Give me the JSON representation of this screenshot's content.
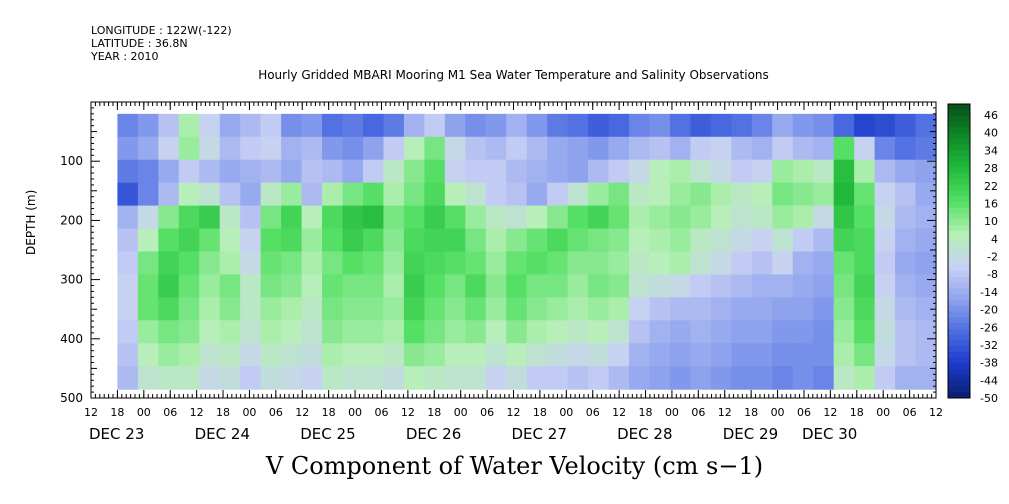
{
  "header": {
    "longitude": "LONGITUDE : 122W(-122)",
    "latitude": "LATITUDE : 36.8N",
    "year": "YEAR : 2010"
  },
  "chart_data": {
    "type": "heatmap",
    "title": "Hourly Gridded MBARI Mooring M1 Sea Water Temperature and Salinity Observations",
    "xlabel": "",
    "ylabel": "DEPTH (m)",
    "caption": "V Component of Water Velocity (cm s−1)",
    "ylim": [
      500,
      0
    ],
    "y_ticks": [
      100,
      200,
      300,
      400,
      500
    ],
    "x_hour_ticks": [
      "12",
      "18",
      "00",
      "06",
      "12",
      "18",
      "00",
      "06",
      "12",
      "18",
      "00",
      "06",
      "12",
      "18",
      "00",
      "06",
      "12",
      "18",
      "00",
      "06",
      "12",
      "18",
      "00",
      "06",
      "12",
      "18",
      "00",
      "06",
      "12",
      "18",
      "00",
      "06",
      "12"
    ],
    "x_day_labels": [
      "DEC 23",
      "DEC 24",
      "DEC 25",
      "DEC 26",
      "DEC 27",
      "DEC 28",
      "DEC 29",
      "DEC 30"
    ],
    "colorbar": {
      "labels": [
        "46",
        "40",
        "34",
        "28",
        "22",
        "16",
        "10",
        "4",
        "-2",
        "-8",
        "-14",
        "-20",
        "-26",
        "-32",
        "-38",
        "-44",
        "-50"
      ],
      "min": -50,
      "max": 52,
      "palette": [
        "#0a1f6e",
        "#1a39c8",
        "#4a6be0",
        "#8ea2ee",
        "#c8d0f5",
        "#b6f0b6",
        "#55e065",
        "#22bb3c",
        "#0f8a28",
        "#0a4f1a"
      ]
    },
    "data_extent": {
      "depth_top": 20,
      "depth_bottom": 485,
      "time_start": "DEC 23 18",
      "time_end": "DEC 30 12"
    },
    "values": [
      [
        -22,
        -18,
        -8,
        8,
        -4,
        -14,
        -10,
        -6,
        -20,
        -18,
        -26,
        -24,
        -28,
        -24,
        -12,
        -6,
        -16,
        -20,
        -18,
        -12,
        -18,
        -24,
        -26,
        -30,
        -28,
        -22,
        -20,
        -26,
        -30,
        -28,
        -26,
        -22,
        -14,
        -18,
        -20,
        -28,
        -36,
        -34,
        -30,
        -26
      ],
      [
        -18,
        -14,
        -4,
        10,
        -2,
        -10,
        -6,
        -4,
        -12,
        -10,
        -18,
        -20,
        -16,
        -6,
        6,
        14,
        -2,
        -8,
        -10,
        -6,
        -10,
        -14,
        -16,
        -18,
        -14,
        -10,
        -8,
        -12,
        -6,
        -4,
        -10,
        -12,
        -6,
        -10,
        -12,
        18,
        -4,
        -22,
        -26,
        -24
      ],
      [
        -24,
        -22,
        -14,
        -6,
        -10,
        -14,
        -12,
        -10,
        -14,
        -8,
        -10,
        -14,
        -6,
        4,
        12,
        18,
        -4,
        -6,
        -6,
        -10,
        -12,
        -14,
        -16,
        -10,
        -6,
        -2,
        6,
        8,
        2,
        -2,
        -6,
        -4,
        10,
        8,
        4,
        28,
        8,
        -10,
        -14,
        -16
      ],
      [
        -32,
        -22,
        -10,
        6,
        2,
        -8,
        -14,
        4,
        10,
        -10,
        8,
        14,
        18,
        8,
        14,
        20,
        6,
        2,
        -6,
        -8,
        -14,
        -6,
        2,
        10,
        14,
        4,
        6,
        10,
        12,
        8,
        4,
        6,
        14,
        12,
        10,
        30,
        16,
        -4,
        -8,
        -14
      ],
      [
        -12,
        -2,
        12,
        20,
        24,
        4,
        -8,
        14,
        22,
        6,
        20,
        26,
        28,
        14,
        18,
        24,
        18,
        10,
        4,
        2,
        6,
        12,
        18,
        22,
        16,
        8,
        10,
        12,
        10,
        6,
        2,
        4,
        10,
        8,
        -2,
        26,
        18,
        -2,
        -10,
        -12
      ],
      [
        -8,
        6,
        18,
        22,
        16,
        6,
        -4,
        18,
        20,
        10,
        18,
        24,
        20,
        12,
        20,
        22,
        22,
        14,
        8,
        12,
        16,
        20,
        16,
        14,
        12,
        6,
        8,
        10,
        4,
        2,
        -2,
        -4,
        2,
        -6,
        -10,
        22,
        20,
        -4,
        -12,
        -14
      ],
      [
        -6,
        14,
        22,
        18,
        12,
        8,
        -2,
        16,
        14,
        8,
        14,
        18,
        16,
        10,
        22,
        20,
        18,
        16,
        10,
        16,
        18,
        16,
        12,
        12,
        10,
        4,
        6,
        8,
        2,
        -2,
        -6,
        -8,
        -4,
        -12,
        -14,
        16,
        20,
        -6,
        -14,
        -16
      ],
      [
        -4,
        16,
        24,
        16,
        10,
        14,
        4,
        14,
        12,
        6,
        16,
        14,
        14,
        8,
        24,
        18,
        14,
        20,
        12,
        18,
        14,
        14,
        10,
        14,
        12,
        2,
        0,
        -2,
        -6,
        -8,
        -10,
        -12,
        -12,
        -14,
        -16,
        14,
        22,
        -4,
        -12,
        -14
      ],
      [
        -4,
        16,
        20,
        14,
        8,
        12,
        4,
        10,
        8,
        4,
        14,
        12,
        12,
        10,
        22,
        16,
        12,
        16,
        10,
        16,
        12,
        10,
        8,
        10,
        8,
        -4,
        -8,
        -10,
        -10,
        -12,
        -14,
        -14,
        -16,
        -16,
        -18,
        12,
        20,
        -2,
        -10,
        -12
      ],
      [
        -6,
        10,
        14,
        12,
        6,
        8,
        2,
        8,
        6,
        2,
        12,
        10,
        10,
        8,
        18,
        14,
        10,
        12,
        6,
        12,
        8,
        6,
        4,
        6,
        2,
        -8,
        -12,
        -14,
        -12,
        -14,
        -16,
        -16,
        -18,
        -18,
        -20,
        10,
        18,
        0,
        -8,
        -10
      ],
      [
        -8,
        6,
        10,
        8,
        2,
        4,
        -2,
        4,
        2,
        0,
        8,
        6,
        6,
        4,
        12,
        10,
        6,
        6,
        2,
        6,
        2,
        0,
        -2,
        0,
        -4,
        -12,
        -14,
        -16,
        -14,
        -16,
        -18,
        -18,
        -20,
        -20,
        -20,
        8,
        14,
        -2,
        -8,
        -10
      ],
      [
        -10,
        2,
        4,
        4,
        -2,
        0,
        -6,
        0,
        -2,
        -4,
        4,
        2,
        2,
        0,
        6,
        4,
        2,
        2,
        -4,
        0,
        -6,
        -6,
        -8,
        -6,
        -10,
        -14,
        -16,
        -18,
        -16,
        -18,
        -20,
        -20,
        -22,
        -20,
        -22,
        4,
        8,
        -6,
        -12,
        -12
      ]
    ]
  }
}
